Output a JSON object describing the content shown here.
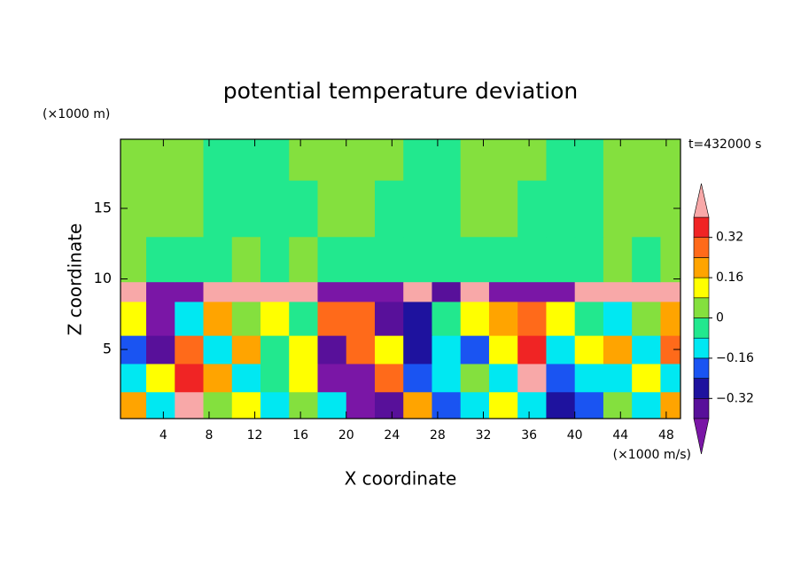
{
  "chart_data": {
    "type": "contour",
    "title": "potential temperature deviation",
    "x_label": "X coordinate",
    "y_label": "Z coordinate",
    "x_unit": "(×1000 m/s)",
    "y_unit": "(×1000 m)",
    "time_label": "t=432000 s",
    "xlim": [
      0.25,
      49.25
    ],
    "ylim": [
      0.1,
      19.9
    ],
    "xticks": [
      4,
      8,
      12,
      16,
      20,
      24,
      28,
      32,
      36,
      40,
      44,
      48
    ],
    "yticks": [
      5,
      10,
      15
    ],
    "x_edges": [
      0.25,
      2.5,
      5,
      7.5,
      10,
      12.5,
      15,
      17.5,
      20,
      22.5,
      25,
      27.5,
      30,
      32.5,
      35,
      37.5,
      40,
      42.5,
      45,
      47.5,
      49.25
    ],
    "y_edges": [
      0.1,
      2,
      4,
      6,
      8.4,
      9.8,
      13,
      17,
      19.9
    ],
    "z": [
      [
        0.2,
        -0.12,
        0.44,
        0.04,
        0.12,
        -0.12,
        0.04,
        -0.12,
        -0.44,
        -0.36,
        0.2,
        -0.2,
        -0.12,
        0.12,
        -0.12,
        -0.28,
        -0.2,
        0.04,
        -0.12,
        0.2
      ],
      [
        -0.12,
        0.12,
        0.36,
        0.2,
        -0.12,
        -0.04,
        0.12,
        -0.44,
        -0.44,
        0.28,
        -0.2,
        -0.12,
        0.04,
        -0.12,
        0.44,
        -0.2,
        -0.12,
        -0.12,
        0.12,
        -0.12
      ],
      [
        -0.2,
        -0.36,
        0.28,
        -0.12,
        0.2,
        -0.04,
        0.12,
        -0.36,
        0.28,
        0.12,
        -0.28,
        -0.12,
        -0.2,
        0.12,
        0.36,
        -0.12,
        0.12,
        0.2,
        -0.12,
        0.28
      ],
      [
        0.12,
        -0.44,
        -0.12,
        0.2,
        0.04,
        0.12,
        -0.04,
        0.28,
        0.24,
        -0.36,
        -0.28,
        -0.04,
        0.12,
        0.2,
        0.28,
        0.12,
        -0.04,
        -0.12,
        0.04,
        0.2
      ],
      [
        0.44,
        -0.44,
        -0.44,
        0.44,
        0.44,
        0.44,
        0.44,
        -0.44,
        -0.44,
        -0.44,
        0.44,
        -0.36,
        0.44,
        -0.44,
        -0.44,
        -0.44,
        0.44,
        0.44,
        0.44,
        0.44
      ],
      [
        0.04,
        -0.04,
        -0.04,
        -0.04,
        0.04,
        -0.04,
        0.04,
        -0.04,
        -0.04,
        -0.04,
        -0.04,
        -0.04,
        -0.04,
        -0.04,
        -0.04,
        -0.04,
        -0.04,
        0.04,
        -0.04,
        0.04
      ],
      [
        0.04,
        0.04,
        0.04,
        -0.04,
        -0.04,
        -0.04,
        -0.04,
        0.04,
        0.04,
        -0.04,
        -0.04,
        -0.04,
        0.04,
        0.04,
        -0.04,
        -0.04,
        -0.04,
        0.04,
        0.04,
        0.04
      ],
      [
        0.04,
        0.04,
        0.04,
        -0.04,
        -0.04,
        -0.04,
        0.04,
        0.04,
        0.04,
        0.04,
        -0.04,
        -0.04,
        0.04,
        0.04,
        0.04,
        -0.04,
        -0.04,
        0.04,
        0.04,
        0.04
      ]
    ],
    "levels": [
      -0.4,
      -0.32,
      -0.24,
      -0.16,
      -0.08,
      0,
      0.08,
      0.16,
      0.24,
      0.32,
      0.4
    ],
    "colors": [
      "#7a16a6",
      "#58109a",
      "#1e129e",
      "#1a54f2",
      "#00e8f2",
      "#22e88e",
      "#84e03e",
      "#ffff00",
      "#ffa400",
      "#ff6a1a",
      "#f02424",
      "#f8a8a8"
    ],
    "colorbar_ticks": [
      {
        "value": -0.32,
        "label": "−0.32"
      },
      {
        "value": -0.16,
        "label": "−0.16"
      },
      0,
      0.16,
      0.32
    ]
  }
}
